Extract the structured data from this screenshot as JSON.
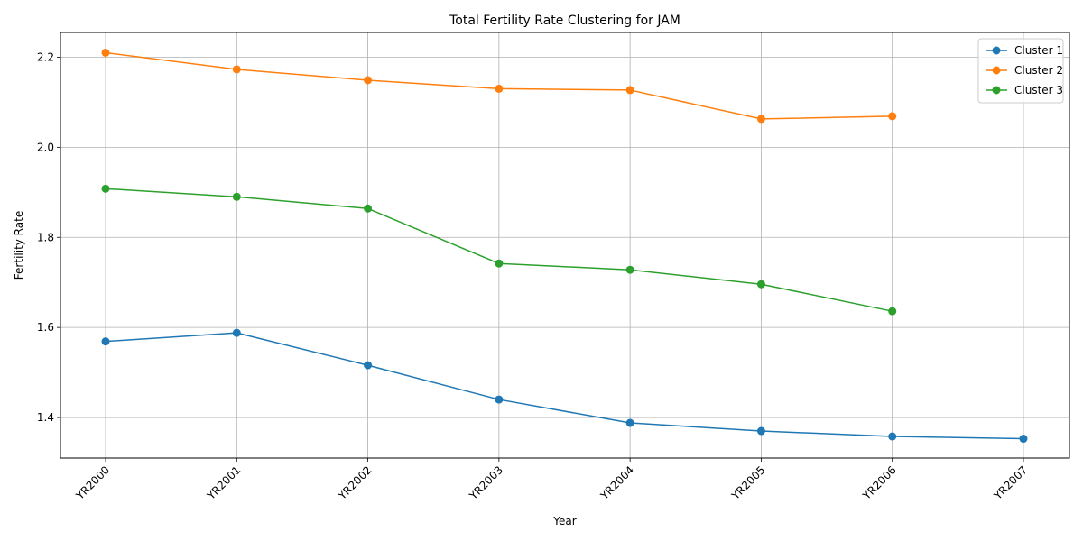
{
  "chart_data": {
    "type": "line",
    "title": "Total Fertility Rate Clustering for JAM",
    "xlabel": "Year",
    "ylabel": "Fertility Rate",
    "categories": [
      "YR2000",
      "YR2001",
      "YR2002",
      "YR2003",
      "YR2004",
      "YR2005",
      "YR2006",
      "YR2007"
    ],
    "yticks": [
      1.4,
      1.6,
      1.8,
      2.0,
      2.2
    ],
    "ylim": [
      1.31,
      2.255
    ],
    "grid": true,
    "legend_position": "top-right",
    "series": [
      {
        "name": "Cluster 1",
        "color": "#1f77b4",
        "values": [
          1.569,
          1.588,
          1.516,
          1.44,
          1.388,
          1.37,
          1.358,
          1.353
        ]
      },
      {
        "name": "Cluster 2",
        "color": "#ff7f0e",
        "values": [
          2.21,
          2.173,
          2.149,
          2.13,
          2.127,
          2.063,
          2.069,
          null
        ]
      },
      {
        "name": "Cluster 3",
        "color": "#2ca02c",
        "values": [
          1.908,
          1.89,
          1.864,
          1.742,
          1.728,
          1.696,
          1.636,
          null
        ]
      }
    ]
  }
}
